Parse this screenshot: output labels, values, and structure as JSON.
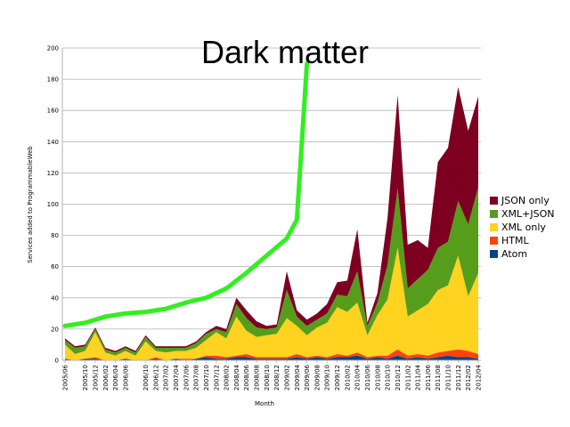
{
  "chart_data": {
    "type": "area",
    "stacked": true,
    "title": "Dark matter",
    "xlabel": "Month",
    "ylabel": "Services added to ProgrammableWeb",
    "ylim": [
      0,
      200
    ],
    "yticks": [
      0,
      20,
      40,
      60,
      80,
      100,
      120,
      140,
      160,
      180,
      200
    ],
    "grid": true,
    "legend_position": "right",
    "x_tick_labels": [
      "2005/06",
      "2005/10",
      "2005/12",
      "2006/02",
      "2006/04",
      "2006/06",
      "2006/10",
      "2006/12",
      "2007/02",
      "2007/04",
      "2007/06",
      "2007/08",
      "2007/10",
      "2007/12",
      "2008/02",
      "2008/04",
      "2008/06",
      "2008/08",
      "2008/10",
      "2008/12",
      "2009/02",
      "2009/04",
      "2009/06",
      "2009/08",
      "2009/10",
      "2009/12",
      "2010/02",
      "2010/04",
      "2010/06",
      "2010/08",
      "2010/10",
      "2010/12",
      "2011/02",
      "2011/04",
      "2011/06",
      "2011/08",
      "2011/10",
      "2011/12",
      "2012/02",
      "2012/04"
    ],
    "x": [
      "2005/06",
      "2005/08",
      "2005/10",
      "2005/12",
      "2006/02",
      "2006/04",
      "2006/06",
      "2006/08",
      "2006/10",
      "2006/12",
      "2007/02",
      "2007/04",
      "2007/06",
      "2007/08",
      "2007/10",
      "2007/12",
      "2008/02",
      "2008/04",
      "2008/06",
      "2008/08",
      "2008/10",
      "2008/12",
      "2009/02",
      "2009/04",
      "2009/06",
      "2009/08",
      "2009/10",
      "2009/12",
      "2010/02",
      "2010/04",
      "2010/06",
      "2010/08",
      "2010/10",
      "2010/12",
      "2011/02",
      "2011/04",
      "2011/06",
      "2011/08",
      "2011/10",
      "2011/12",
      "2012/02",
      "2012/04"
    ],
    "series": [
      {
        "name": "Atom",
        "color": "#004586",
        "values": [
          1,
          0,
          1,
          1,
          0,
          0,
          1,
          0,
          0,
          1,
          0,
          1,
          0,
          1,
          2,
          1,
          1,
          2,
          2,
          1,
          1,
          1,
          1,
          2,
          1,
          2,
          1,
          2,
          2,
          3,
          1,
          2,
          1,
          3,
          1,
          2,
          1,
          2,
          3,
          2,
          2,
          1
        ]
      },
      {
        "name": "HTML",
        "color": "#ff420e",
        "values": [
          0,
          0,
          0,
          1,
          0,
          0,
          0,
          0,
          0,
          1,
          0,
          0,
          1,
          0,
          1,
          2,
          1,
          1,
          2,
          1,
          1,
          1,
          1,
          2,
          1,
          1,
          1,
          2,
          1,
          2,
          1,
          1,
          2,
          4,
          2,
          2,
          2,
          3,
          3,
          5,
          4,
          3
        ]
      },
      {
        "name": "XML only",
        "color": "#ffd320",
        "values": [
          9,
          4,
          5,
          16,
          5,
          3,
          5,
          3,
          12,
          4,
          5,
          5,
          5,
          7,
          10,
          15,
          12,
          25,
          15,
          13,
          14,
          15,
          25,
          18,
          14,
          18,
          22,
          30,
          28,
          32,
          14,
          26,
          36,
          65,
          25,
          28,
          33,
          40,
          42,
          60,
          35,
          52
        ]
      },
      {
        "name": "XML+JSON",
        "color": "#579d1c",
        "values": [
          3,
          4,
          3,
          2,
          2,
          2,
          2,
          2,
          3,
          2,
          3,
          2,
          2,
          3,
          4,
          2,
          4,
          8,
          8,
          6,
          4,
          4,
          18,
          6,
          6,
          5,
          6,
          8,
          10,
          20,
          6,
          8,
          22,
          38,
          18,
          20,
          22,
          27,
          28,
          35,
          46,
          55
        ]
      },
      {
        "name": "JSON only",
        "color": "#7e0021",
        "values": [
          1,
          1,
          1,
          1,
          1,
          1,
          1,
          1,
          1,
          1,
          1,
          1,
          1,
          1,
          1,
          2,
          2,
          4,
          5,
          4,
          2,
          2,
          12,
          4,
          4,
          4,
          6,
          8,
          10,
          27,
          2,
          6,
          30,
          60,
          28,
          25,
          14,
          55,
          60,
          73,
          60,
          58
        ]
      }
    ],
    "annotation_line": {
      "color": "#33ee22",
      "x": [
        "2005/06",
        "2005/10",
        "2006/02",
        "2006/06",
        "2006/10",
        "2007/02",
        "2007/06",
        "2007/10",
        "2008/02",
        "2008/06",
        "2008/10",
        "2009/02",
        "2009/04",
        "2009/06"
      ],
      "y": [
        22,
        24,
        28,
        30,
        31,
        33,
        37,
        40,
        46,
        56,
        67,
        78,
        90,
        190
      ]
    }
  }
}
